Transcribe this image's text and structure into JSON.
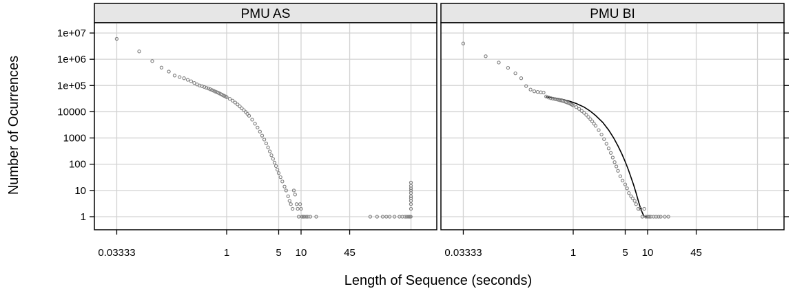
{
  "chart_data": {
    "type": "scatter",
    "layout": "lattice, 2 panels side by side",
    "xlabel": "Length of Sequence (seconds)",
    "ylabel": "Number of Ocurrences",
    "x_scale": "log",
    "y_scale": "log",
    "xlim": [
      0.02,
      500
    ],
    "ylim": [
      0.5,
      20000000
    ],
    "x_ticks": [
      {
        "value": 0.03333,
        "label": "0.03333"
      },
      {
        "value": 1,
        "label": "1"
      },
      {
        "value": 5,
        "label": "5"
      },
      {
        "value": 10,
        "label": "10"
      },
      {
        "value": 45,
        "label": "45"
      }
    ],
    "x_gridlines": [
      0.03333,
      1,
      5,
      10,
      45,
      300
    ],
    "y_ticks": [
      {
        "value": 1,
        "label": "1"
      },
      {
        "value": 10,
        "label": "10"
      },
      {
        "value": 100,
        "label": "100"
      },
      {
        "value": 1000,
        "label": "1000"
      },
      {
        "value": 10000,
        "label": "10000"
      },
      {
        "value": 100000,
        "label": "1e+05"
      },
      {
        "value": 1000000,
        "label": "1e+06"
      },
      {
        "value": 10000000,
        "label": "1e+07"
      }
    ],
    "grid": true,
    "colors": {
      "points": "#7f7f7f",
      "fit_line": "#000000",
      "grid": "#d3d3d3",
      "strip_bg": "#e6e6e6"
    },
    "panels": [
      {
        "label": "PMU AS",
        "points": [
          [
            0.0333,
            6000000
          ],
          [
            0.0667,
            2000000
          ],
          [
            0.1,
            850000
          ],
          [
            0.133,
            480000
          ],
          [
            0.167,
            340000
          ],
          [
            0.2,
            240000
          ],
          [
            0.233,
            210000
          ],
          [
            0.267,
            190000
          ],
          [
            0.3,
            165000
          ],
          [
            0.333,
            145000
          ],
          [
            0.367,
            125000
          ],
          [
            0.4,
            110000
          ],
          [
            0.433,
            100000
          ],
          [
            0.467,
            94000
          ],
          [
            0.5,
            88000
          ],
          [
            0.533,
            82000
          ],
          [
            0.567,
            77000
          ],
          [
            0.6,
            72000
          ],
          [
            0.633,
            67000
          ],
          [
            0.667,
            63000
          ],
          [
            0.7,
            59000
          ],
          [
            0.733,
            56000
          ],
          [
            0.767,
            53000
          ],
          [
            0.8,
            50000
          ],
          [
            0.833,
            47000
          ],
          [
            0.867,
            44500
          ],
          [
            0.9,
            42000
          ],
          [
            0.933,
            40000
          ],
          [
            0.967,
            38000
          ],
          [
            1.0,
            36000
          ],
          [
            1.1,
            31000
          ],
          [
            1.2,
            26500
          ],
          [
            1.3,
            22500
          ],
          [
            1.4,
            19000
          ],
          [
            1.5,
            16000
          ],
          [
            1.6,
            13500
          ],
          [
            1.7,
            11500
          ],
          [
            1.8,
            9800
          ],
          [
            1.9,
            8300
          ],
          [
            2.0,
            7000
          ],
          [
            2.2,
            5000
          ],
          [
            2.4,
            3500
          ],
          [
            2.6,
            2500
          ],
          [
            2.8,
            1750
          ],
          [
            3.0,
            1230
          ],
          [
            3.2,
            870
          ],
          [
            3.4,
            620
          ],
          [
            3.6,
            440
          ],
          [
            3.8,
            310
          ],
          [
            4.0,
            220
          ],
          [
            4.2,
            160
          ],
          [
            4.4,
            115
          ],
          [
            4.6,
            85
          ],
          [
            4.8,
            62
          ],
          [
            5.0,
            46
          ],
          [
            5.3,
            32
          ],
          [
            5.6,
            22
          ],
          [
            6.0,
            14
          ],
          [
            6.3,
            10
          ],
          [
            6.7,
            6
          ],
          [
            7.0,
            4
          ],
          [
            7.3,
            3
          ],
          [
            7.7,
            2
          ],
          [
            8.0,
            10
          ],
          [
            8.3,
            7
          ],
          [
            8.7,
            3
          ],
          [
            9.0,
            2
          ],
          [
            9.3,
            1
          ],
          [
            9.7,
            3
          ],
          [
            10.0,
            2
          ],
          [
            10.3,
            1
          ],
          [
            10.7,
            1
          ],
          [
            11.0,
            1
          ],
          [
            11.7,
            1
          ],
          [
            12.3,
            1
          ],
          [
            13.3,
            1
          ],
          [
            16.0,
            1
          ],
          [
            85.0,
            1
          ],
          [
            105.0,
            1
          ],
          [
            125.0,
            1
          ],
          [
            140.0,
            1
          ],
          [
            155.0,
            1
          ],
          [
            180.0,
            1
          ],
          [
            210.0,
            1
          ],
          [
            230.0,
            1
          ],
          [
            250.0,
            1
          ],
          [
            265.0,
            1
          ],
          [
            280.0,
            1
          ],
          [
            290.0,
            1
          ],
          [
            298.0,
            1
          ],
          [
            300,
            2
          ],
          [
            300,
            3
          ],
          [
            300,
            4
          ],
          [
            300,
            5
          ],
          [
            300,
            6
          ],
          [
            300,
            8
          ],
          [
            300,
            10
          ],
          [
            300,
            12
          ],
          [
            300,
            15
          ],
          [
            300,
            20
          ]
        ],
        "fit_line": []
      },
      {
        "label": "PMU BI",
        "points": [
          [
            0.0333,
            4000000
          ],
          [
            0.0667,
            1300000
          ],
          [
            0.1,
            750000
          ],
          [
            0.133,
            470000
          ],
          [
            0.167,
            290000
          ],
          [
            0.2,
            190000
          ],
          [
            0.233,
            95000
          ],
          [
            0.267,
            70000
          ],
          [
            0.3,
            60000
          ],
          [
            0.333,
            57000
          ],
          [
            0.367,
            55000
          ],
          [
            0.4,
            54000
          ],
          [
            0.433,
            38000
          ],
          [
            0.467,
            35000
          ],
          [
            0.5,
            33000
          ],
          [
            0.533,
            31500
          ],
          [
            0.567,
            30500
          ],
          [
            0.6,
            29500
          ],
          [
            0.633,
            28500
          ],
          [
            0.667,
            27500
          ],
          [
            0.7,
            26500
          ],
          [
            0.733,
            25500
          ],
          [
            0.767,
            24500
          ],
          [
            0.8,
            23500
          ],
          [
            0.833,
            22500
          ],
          [
            0.867,
            21500
          ],
          [
            0.9,
            20500
          ],
          [
            0.933,
            19500
          ],
          [
            0.967,
            18500
          ],
          [
            1.0,
            17500
          ],
          [
            1.1,
            15000
          ],
          [
            1.2,
            12800
          ],
          [
            1.3,
            10800
          ],
          [
            1.4,
            9100
          ],
          [
            1.5,
            7600
          ],
          [
            1.6,
            6300
          ],
          [
            1.7,
            5200
          ],
          [
            1.8,
            4300
          ],
          [
            1.9,
            3500
          ],
          [
            2.0,
            2900
          ],
          [
            2.2,
            2000
          ],
          [
            2.4,
            1350
          ],
          [
            2.6,
            900
          ],
          [
            2.8,
            600
          ],
          [
            3.0,
            400
          ],
          [
            3.2,
            270
          ],
          [
            3.4,
            180
          ],
          [
            3.6,
            120
          ],
          [
            3.8,
            82
          ],
          [
            4.0,
            56
          ],
          [
            4.3,
            35
          ],
          [
            4.6,
            24
          ],
          [
            5.0,
            17
          ],
          [
            5.3,
            12
          ],
          [
            5.6,
            8
          ],
          [
            6.0,
            6
          ],
          [
            6.3,
            5
          ],
          [
            6.7,
            4
          ],
          [
            7.0,
            3
          ],
          [
            7.5,
            2
          ],
          [
            8.0,
            2
          ],
          [
            8.5,
            1
          ],
          [
            9.0,
            2
          ],
          [
            9.5,
            1
          ],
          [
            10.0,
            1
          ],
          [
            10.5,
            1
          ],
          [
            11.0,
            1
          ],
          [
            12.0,
            1
          ],
          [
            13.0,
            1
          ],
          [
            14.0,
            1
          ],
          [
            15.0,
            1
          ],
          [
            17.0,
            1
          ],
          [
            19.0,
            1
          ]
        ],
        "fit_line": [
          [
            0.43,
            37000
          ],
          [
            0.55,
            34000
          ],
          [
            0.7,
            30000
          ],
          [
            0.9,
            25000
          ],
          [
            1.1,
            20500
          ],
          [
            1.4,
            15000
          ],
          [
            1.7,
            10500
          ],
          [
            2.0,
            7200
          ],
          [
            2.5,
            3900
          ],
          [
            3.0,
            2000
          ],
          [
            3.5,
            1000
          ],
          [
            4.0,
            500
          ],
          [
            4.5,
            250
          ],
          [
            5.0,
            125
          ],
          [
            5.5,
            62
          ],
          [
            6.0,
            31
          ],
          [
            6.5,
            16
          ],
          [
            7.0,
            8
          ],
          [
            7.5,
            4
          ],
          [
            8.0,
            2.2
          ],
          [
            8.5,
            1.4
          ],
          [
            9.0,
            1.0
          ],
          [
            9.5,
            1.0
          ],
          [
            10.0,
            1.0
          ]
        ]
      }
    ]
  }
}
